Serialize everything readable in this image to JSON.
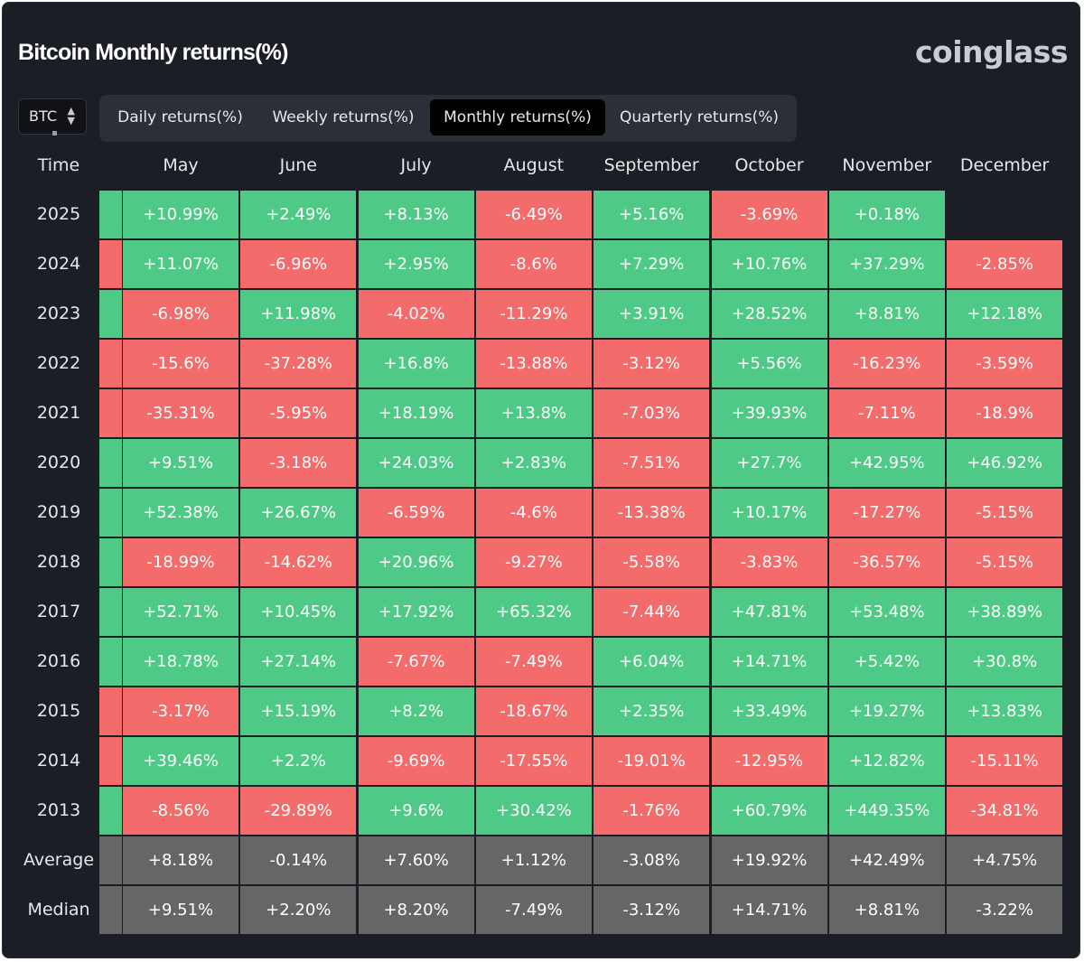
{
  "title": "Bitcoin Monthly returns(%)",
  "brand": "coinglass",
  "coin_select": {
    "value": "BTC",
    "chevron_icon": "up-down-chevron-icon"
  },
  "tabs": [
    {
      "label": "Daily returns(%)",
      "active": false
    },
    {
      "label": "Weekly returns(%)",
      "active": false
    },
    {
      "label": "Monthly returns(%)",
      "active": true
    },
    {
      "label": "Quarterly returns(%)",
      "active": false
    }
  ],
  "colors": {
    "positive": "#4fca86",
    "negative": "#f36b6b",
    "summary": "#666666",
    "background": "#1c1e26"
  },
  "chart_data": {
    "type": "heatmap",
    "title": "Bitcoin Monthly returns(%)",
    "row_header": "Time",
    "columns": [
      "May",
      "June",
      "July",
      "August",
      "September",
      "October",
      "November",
      "December"
    ],
    "rows": [
      {
        "year": "2025",
        "edge": "positive",
        "values": [
          "+10.99%",
          "+2.49%",
          "+8.13%",
          "-6.49%",
          "+5.16%",
          "-3.69%",
          "+0.18%",
          null
        ]
      },
      {
        "year": "2024",
        "edge": "negative",
        "values": [
          "+11.07%",
          "-6.96%",
          "+2.95%",
          "-8.6%",
          "+7.29%",
          "+10.76%",
          "+37.29%",
          "-2.85%"
        ]
      },
      {
        "year": "2023",
        "edge": "positive",
        "values": [
          "-6.98%",
          "+11.98%",
          "-4.02%",
          "-11.29%",
          "+3.91%",
          "+28.52%",
          "+8.81%",
          "+12.18%"
        ]
      },
      {
        "year": "2022",
        "edge": "negative",
        "values": [
          "-15.6%",
          "-37.28%",
          "+16.8%",
          "-13.88%",
          "-3.12%",
          "+5.56%",
          "-16.23%",
          "-3.59%"
        ]
      },
      {
        "year": "2021",
        "edge": "negative",
        "values": [
          "-35.31%",
          "-5.95%",
          "+18.19%",
          "+13.8%",
          "-7.03%",
          "+39.93%",
          "-7.11%",
          "-18.9%"
        ]
      },
      {
        "year": "2020",
        "edge": "positive",
        "values": [
          "+9.51%",
          "-3.18%",
          "+24.03%",
          "+2.83%",
          "-7.51%",
          "+27.7%",
          "+42.95%",
          "+46.92%"
        ]
      },
      {
        "year": "2019",
        "edge": "positive",
        "values": [
          "+52.38%",
          "+26.67%",
          "-6.59%",
          "-4.6%",
          "-13.38%",
          "+10.17%",
          "-17.27%",
          "-5.15%"
        ]
      },
      {
        "year": "2018",
        "edge": "positive",
        "values": [
          "-18.99%",
          "-14.62%",
          "+20.96%",
          "-9.27%",
          "-5.58%",
          "-3.83%",
          "-36.57%",
          "-5.15%"
        ]
      },
      {
        "year": "2017",
        "edge": "positive",
        "values": [
          "+52.71%",
          "+10.45%",
          "+17.92%",
          "+65.32%",
          "-7.44%",
          "+47.81%",
          "+53.48%",
          "+38.89%"
        ]
      },
      {
        "year": "2016",
        "edge": "positive",
        "values": [
          "+18.78%",
          "+27.14%",
          "-7.67%",
          "-7.49%",
          "+6.04%",
          "+14.71%",
          "+5.42%",
          "+30.8%"
        ]
      },
      {
        "year": "2015",
        "edge": "negative",
        "values": [
          "-3.17%",
          "+15.19%",
          "+8.2%",
          "-18.67%",
          "+2.35%",
          "+33.49%",
          "+19.27%",
          "+13.83%"
        ]
      },
      {
        "year": "2014",
        "edge": "negative",
        "values": [
          "+39.46%",
          "+2.2%",
          "-9.69%",
          "-17.55%",
          "-19.01%",
          "-12.95%",
          "+12.82%",
          "-15.11%"
        ]
      },
      {
        "year": "2013",
        "edge": "positive",
        "values": [
          "-8.56%",
          "-29.89%",
          "+9.6%",
          "+30.42%",
          "-1.76%",
          "+60.79%",
          "+449.35%",
          "-34.81%"
        ]
      }
    ],
    "summary": [
      {
        "label": "Average",
        "values": [
          "+8.18%",
          "-0.14%",
          "+7.60%",
          "+1.12%",
          "-3.08%",
          "+19.92%",
          "+42.49%",
          "+4.75%"
        ]
      },
      {
        "label": "Median",
        "values": [
          "+9.51%",
          "+2.20%",
          "+8.20%",
          "-7.49%",
          "-3.12%",
          "+14.71%",
          "+8.81%",
          "-3.22%"
        ]
      }
    ]
  }
}
